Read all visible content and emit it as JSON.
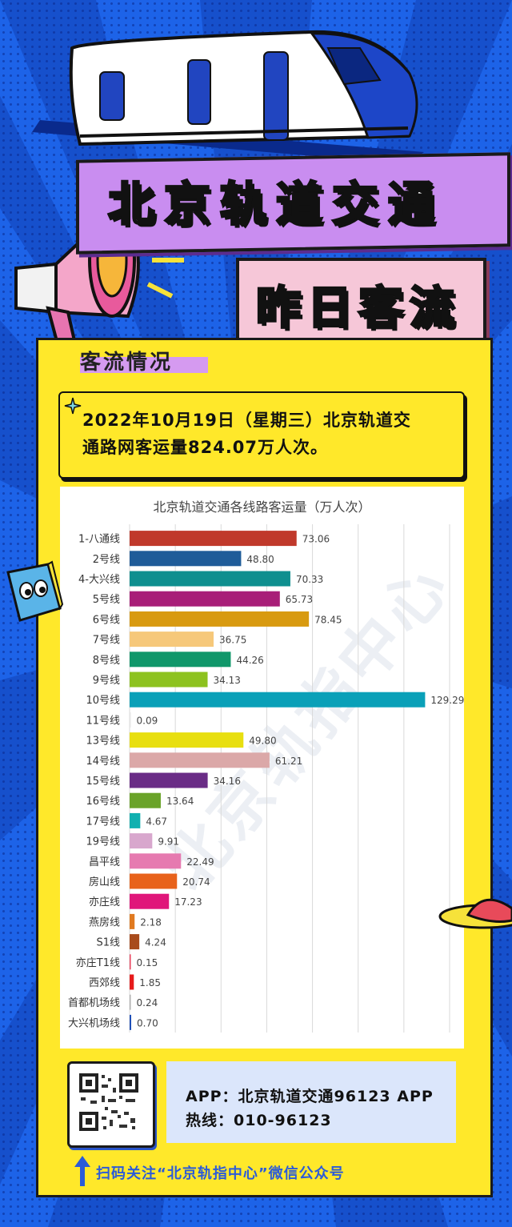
{
  "header": {
    "title": "北京轨道交通",
    "subtitle": "昨日客流"
  },
  "section": {
    "label": "客流情况"
  },
  "summary": {
    "line1": "2022年10月19日（星期三）北京轨道交",
    "line2": "通路网客运量824.07万人次。"
  },
  "watermark": {
    "text": "北京轨指中心"
  },
  "chart_data": {
    "type": "bar",
    "orientation": "horizontal",
    "title": "北京轨道交通各线路客运量（万人次）",
    "xlim": [
      0,
      140
    ],
    "grid": true,
    "categories": [
      "1-八通线",
      "2号线",
      "4-大兴线",
      "5号线",
      "6号线",
      "7号线",
      "8号线",
      "9号线",
      "10号线",
      "11号线",
      "13号线",
      "14号线",
      "15号线",
      "16号线",
      "17号线",
      "19号线",
      "昌平线",
      "房山线",
      "亦庄线",
      "燕房线",
      "S1线",
      "亦庄T1线",
      "西郊线",
      "首都机场线",
      "大兴机场线"
    ],
    "values": [
      73.06,
      48.8,
      70.33,
      65.73,
      78.45,
      36.75,
      44.26,
      34.13,
      129.29,
      0.09,
      49.8,
      61.21,
      34.16,
      13.64,
      4.67,
      9.91,
      22.49,
      20.74,
      17.23,
      2.18,
      4.24,
      0.15,
      1.85,
      0.24,
      0.7
    ],
    "value_labels": [
      "73.06",
      "48.80",
      "70.33",
      "65.73",
      "78.45",
      "36.75",
      "44.26",
      "34.13",
      "129.29",
      "0.09",
      "49.80",
      "61.21",
      "34.16",
      "13.64",
      "4.67",
      "9.91",
      "22.49",
      "20.74",
      "17.23",
      "2.18",
      "4.24",
      "0.15",
      "1.85",
      "0.24",
      "0.70"
    ],
    "colors": [
      "#c0392b",
      "#1f5c99",
      "#0f8f8f",
      "#a81e78",
      "#d89a10",
      "#f6c87a",
      "#10976a",
      "#8dc21f",
      "#0aa0b8",
      "#e6e6e6",
      "#e8df10",
      "#dba8a8",
      "#6a2c86",
      "#6aa329",
      "#10b0b0",
      "#d8a7cd",
      "#e67ab0",
      "#e8621b",
      "#e0167a",
      "#e07a20",
      "#a84b1c",
      "#e83f5a",
      "#e61a1a",
      "#b0b0b0",
      "#1f4fb8"
    ]
  },
  "footer": {
    "app_line": "APP：北京轨道交通96123 APP",
    "hotline": "热线：010-96123",
    "follow": "扫码关注“北京轨指中心”微信公众号"
  }
}
